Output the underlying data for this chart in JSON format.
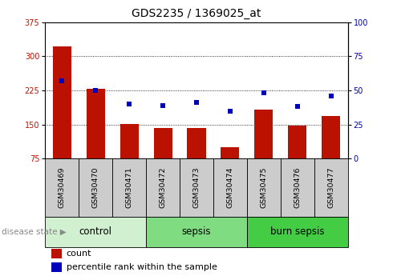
{
  "title": "GDS2235 / 1369025_at",
  "samples": [
    "GSM30469",
    "GSM30470",
    "GSM30471",
    "GSM30472",
    "GSM30473",
    "GSM30474",
    "GSM30475",
    "GSM30476",
    "GSM30477"
  ],
  "counts": [
    322,
    228,
    152,
    143,
    143,
    100,
    183,
    148,
    168
  ],
  "percentiles": [
    57,
    50,
    40,
    39,
    41,
    35,
    48,
    38,
    46
  ],
  "groups": [
    {
      "label": "control",
      "start": 0,
      "end": 3,
      "color": "#d0f0d0"
    },
    {
      "label": "sepsis",
      "start": 3,
      "end": 6,
      "color": "#80dc80"
    },
    {
      "label": "burn sepsis",
      "start": 6,
      "end": 9,
      "color": "#44cc44"
    }
  ],
  "ylim_left": [
    75,
    375
  ],
  "ylim_right": [
    0,
    100
  ],
  "yticks_left": [
    75,
    150,
    225,
    300,
    375
  ],
  "yticks_right": [
    0,
    25,
    50,
    75,
    100
  ],
  "bar_color": "#bb1100",
  "dot_color": "#0000bb",
  "bar_width": 0.55,
  "grid_color": "#000000",
  "sample_box_color": "#cccccc",
  "title_fontsize": 10,
  "tick_fontsize": 7,
  "group_fontsize": 8.5,
  "legend_fontsize": 8,
  "legend_count_label": "count",
  "legend_pct_label": "percentile rank within the sample",
  "disease_state_label": "disease state"
}
